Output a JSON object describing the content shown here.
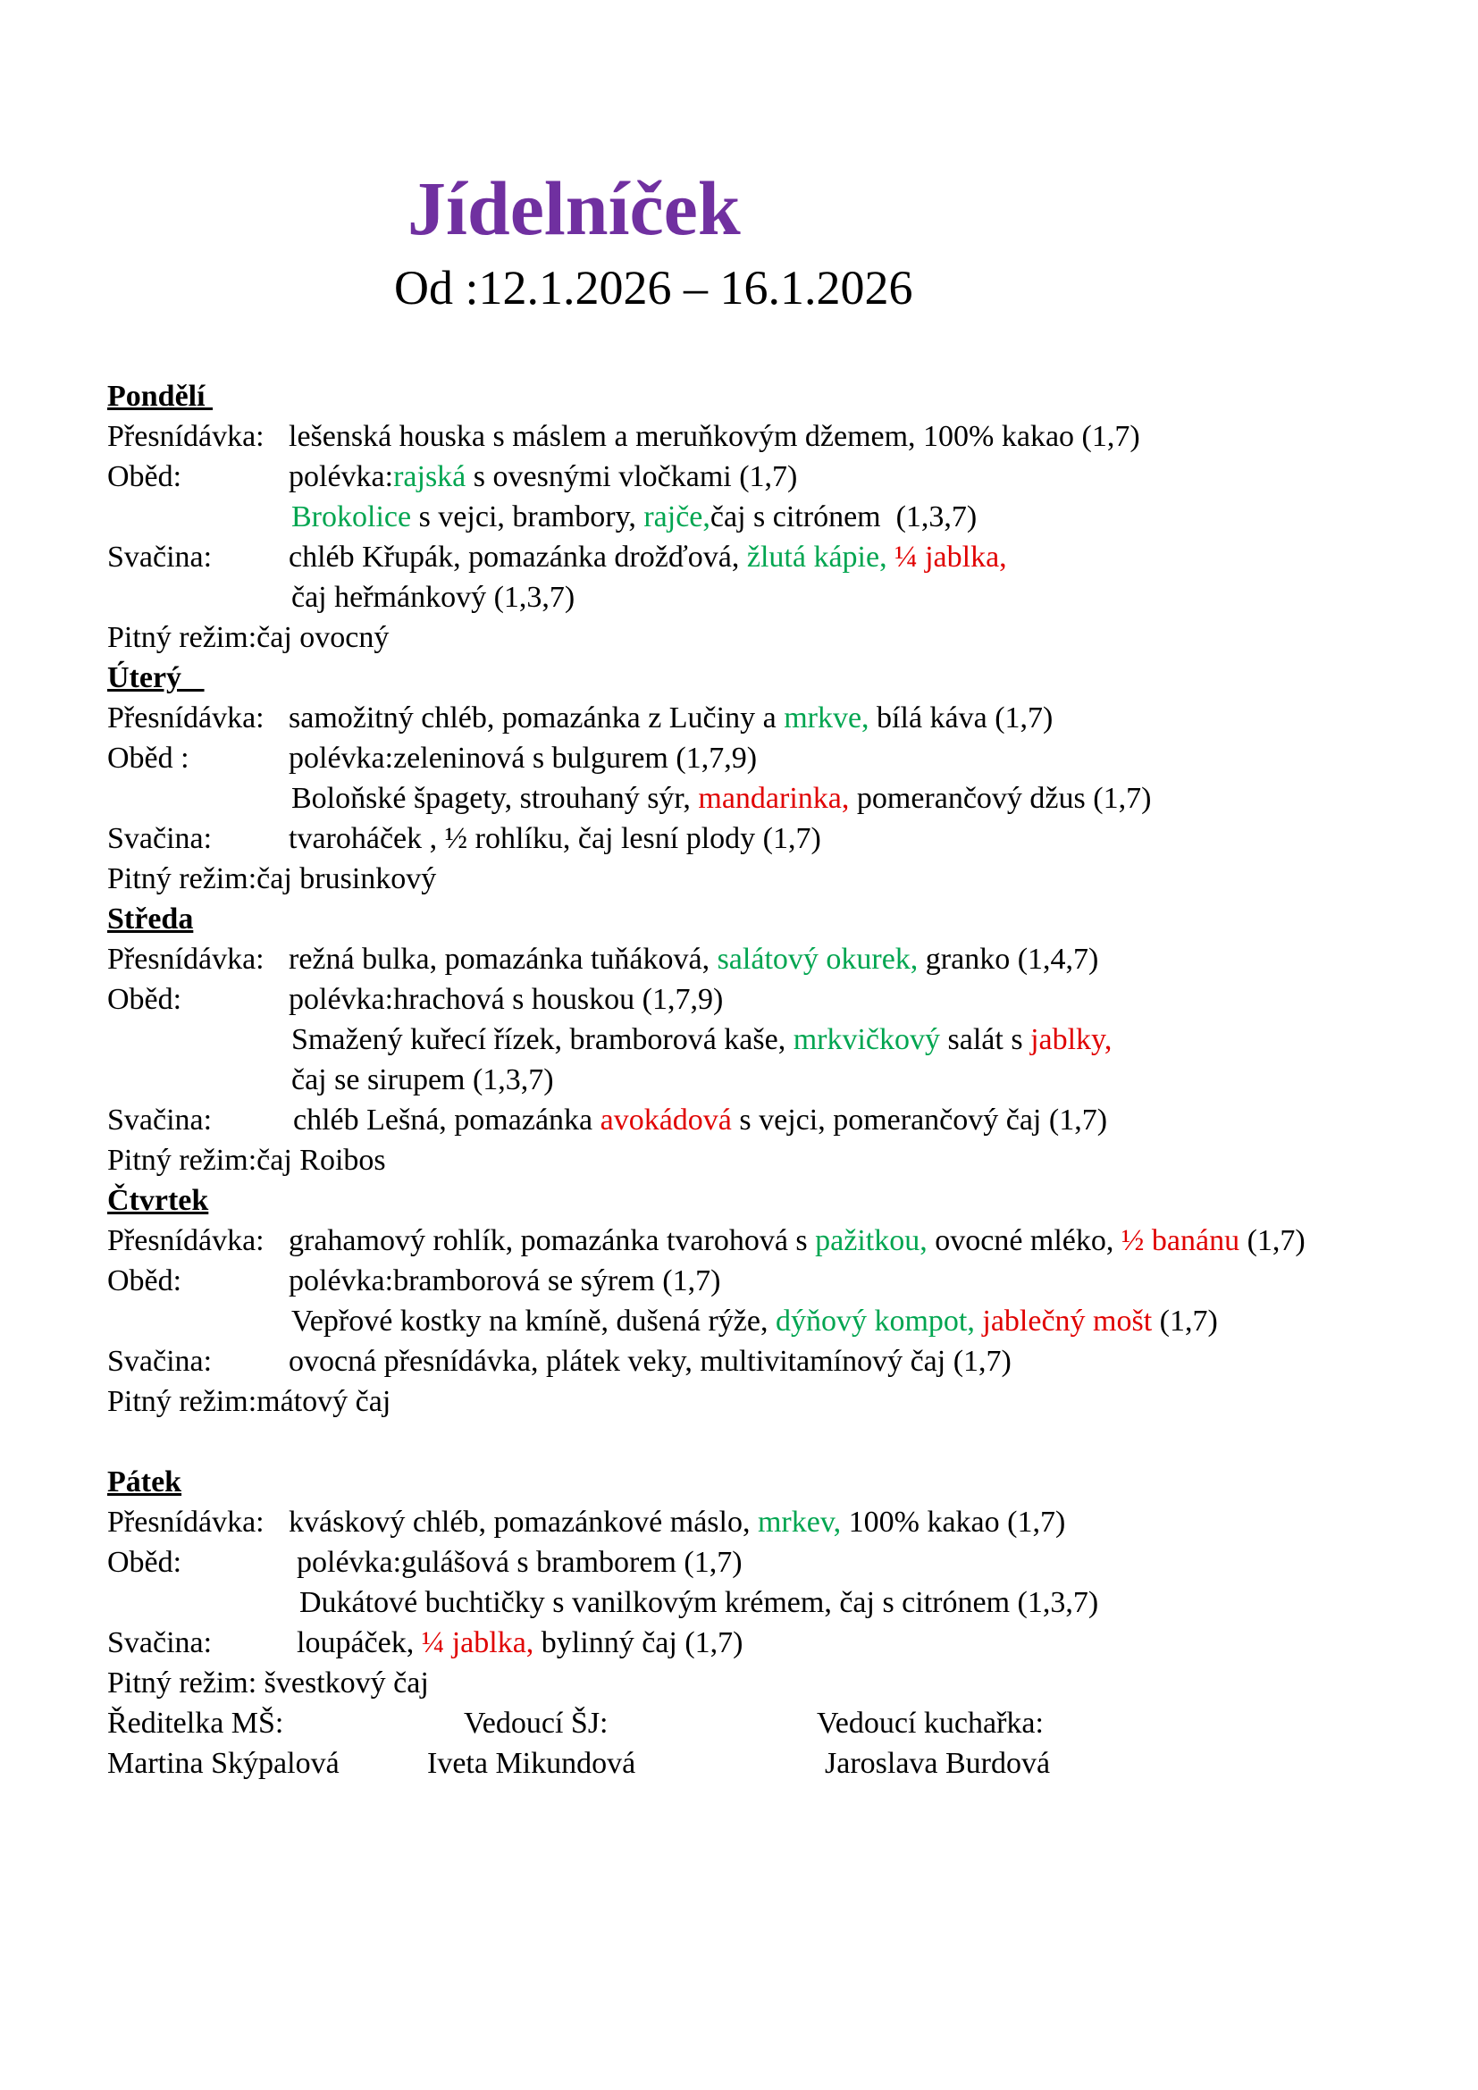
{
  "title": "Jídelníček",
  "date_range": "Od :12.1.2026 – 16.1.2026",
  "colors": {
    "title": "#7030A0",
    "green": "#00A550",
    "red": "#E00000",
    "text": "#000000"
  },
  "days": [
    {
      "name": "Pondělí ",
      "rows": [
        {
          "label": "Přesnídávka:",
          "segments": [
            {
              "t": "lešenská houska s máslem a meruňkovým džemem, 100% kakao (1,7)",
              "c": "text"
            }
          ]
        },
        {
          "label": "Oběd:",
          "segments": [
            {
              "t": "polévka:",
              "c": "text"
            },
            {
              "t": "rajská",
              "c": "green"
            },
            {
              "t": " s ovesnými vločkami (1,7)",
              "c": "text"
            }
          ]
        },
        {
          "label": "",
          "offset": 3,
          "segments": [
            {
              "t": "Brokolice",
              "c": "green"
            },
            {
              "t": " s vejci, brambory, ",
              "c": "text"
            },
            {
              "t": "rajče,",
              "c": "green"
            },
            {
              "t": "čaj s citrónem  (1,3,7)",
              "c": "text"
            }
          ]
        },
        {
          "label": "Svačina:",
          "segments": [
            {
              "t": "chléb Křupák, pomazánka drožďová, ",
              "c": "text"
            },
            {
              "t": "žlutá kápie, ",
              "c": "green"
            },
            {
              "t": "¼ jablka,",
              "c": "red"
            }
          ]
        },
        {
          "label": "",
          "offset": 3,
          "segments": [
            {
              "t": "čaj heřmánkový (1,3,7)",
              "c": "text"
            }
          ]
        },
        {
          "label": "Pitný režim: ",
          "segments": [
            {
              "t": "čaj ovocný",
              "c": "text"
            }
          ]
        }
      ]
    },
    {
      "name": "Úterý   ",
      "rows": [
        {
          "label": "Přesnídávka:",
          "segments": [
            {
              "t": "samožitný chléb, pomazánka z Lučiny a ",
              "c": "text"
            },
            {
              "t": "mrkve,",
              "c": "green"
            },
            {
              "t": " bílá káva (1,7)",
              "c": "text"
            }
          ]
        },
        {
          "label": "Oběd :",
          "segments": [
            {
              "t": "polévka:zeleninová s bulgurem (1,7,9)",
              "c": "text"
            }
          ]
        },
        {
          "label": "",
          "offset": 3,
          "segments": [
            {
              "t": "Boloňské špagety, strouhaný sýr, ",
              "c": "text"
            },
            {
              "t": "mandarinka,",
              "c": "red"
            },
            {
              "t": " pomerančový džus (1,7)",
              "c": "text"
            }
          ]
        },
        {
          "label": "Svačina:",
          "segments": [
            {
              "t": "tvaroháček , ½ rohlíku, čaj lesní plody (1,7)",
              "c": "text"
            }
          ]
        },
        {
          "label": "Pitný režim: ",
          "segments": [
            {
              "t": "čaj brusinkový",
              "c": "text"
            }
          ]
        }
      ]
    },
    {
      "name": "Středa",
      "rows": [
        {
          "label": "Přesnídávka:",
          "segments": [
            {
              "t": "režná bulka, pomazánka tuňáková, ",
              "c": "text"
            },
            {
              "t": "salátový okurek,",
              "c": "green"
            },
            {
              "t": " granko (1,4,7)",
              "c": "text"
            }
          ]
        },
        {
          "label": "Oběd:",
          "segments": [
            {
              "t": "polévka:hrachová s houskou (1,7,9)",
              "c": "text"
            }
          ]
        },
        {
          "label": "",
          "offset": 3,
          "segments": [
            {
              "t": "Smažený kuřecí řízek, bramborová kaše, ",
              "c": "text"
            },
            {
              "t": "mrkvičkový",
              "c": "green"
            },
            {
              "t": " salát s ",
              "c": "text"
            },
            {
              "t": "jablky,",
              "c": "red"
            }
          ]
        },
        {
          "label": "",
          "offset": 3,
          "segments": [
            {
              "t": "čaj se sirupem (1,3,7)",
              "c": "text"
            }
          ]
        },
        {
          "label": "Svačina:",
          "offset": 5,
          "segments": [
            {
              "t": "chléb Lešná, pomazánka ",
              "c": "text"
            },
            {
              "t": "avokádová",
              "c": "red"
            },
            {
              "t": " s vejci, pomerančový čaj (1,7)",
              "c": "text"
            }
          ]
        },
        {
          "label": "Pitný režim: ",
          "segments": [
            {
              "t": "čaj Roibos",
              "c": "text"
            }
          ]
        }
      ]
    },
    {
      "name": "Čtvrtek",
      "rows": [
        {
          "label": "Přesnídávka:",
          "segments": [
            {
              "t": "grahamový rohlík, pomazánka tvarohová s ",
              "c": "text"
            },
            {
              "t": "pažitkou,",
              "c": "green"
            },
            {
              "t": " ovocné mléko, ",
              "c": "text"
            },
            {
              "t": "½ banánu",
              "c": "red"
            },
            {
              "t": " (1,7)",
              "c": "text"
            }
          ]
        },
        {
          "label": "Oběd:",
          "segments": [
            {
              "t": "polévka:bramborová se sýrem (1,7)",
              "c": "text"
            }
          ]
        },
        {
          "label": "",
          "offset": 3,
          "segments": [
            {
              "t": "Vepřové kostky na kmíně, dušená rýže, ",
              "c": "text"
            },
            {
              "t": "dýňový kompot,",
              "c": "green"
            },
            {
              "t": " ",
              "c": "text"
            },
            {
              "t": "jablečný mošt",
              "c": "red"
            },
            {
              "t": " (1,7)",
              "c": "text"
            }
          ]
        },
        {
          "label": "Svačina:",
          "segments": [
            {
              "t": "ovocná přesnídávka, plátek veky, multivitamínový čaj (1,7)",
              "c": "text"
            }
          ]
        },
        {
          "label": "Pitný režim: ",
          "segments": [
            {
              "t": "mátový čaj",
              "c": "text"
            }
          ]
        },
        {
          "label": "",
          "segments": []
        }
      ]
    },
    {
      "name": "Pátek",
      "rows": [
        {
          "label": "Přesnídávka:",
          "segments": [
            {
              "t": "kváskový chléb, pomazánkové máslo, ",
              "c": "text"
            },
            {
              "t": "mrkev,",
              "c": "green"
            },
            {
              "t": " 100% kakao (1,7)",
              "c": "text"
            }
          ]
        },
        {
          "label": "Oběd:",
          "offset": 9,
          "segments": [
            {
              "t": "polévka:gulášová s bramborem (1,7)",
              "c": "text"
            }
          ]
        },
        {
          "label": "",
          "offset": 12,
          "segments": [
            {
              "t": "Dukátové buchtičky s vanilkovým krémem, čaj s citrónem (1,3,7)",
              "c": "text"
            }
          ]
        },
        {
          "label": "Svačina:",
          "offset": 9,
          "segments": [
            {
              "t": "loupáček, ",
              "c": "text"
            },
            {
              "t": "¼ jablka,",
              "c": "red"
            },
            {
              "t": " bylinný čaj (1,7)",
              "c": "text"
            }
          ]
        },
        {
          "label": "Pitný režim: ",
          "segments": [
            {
              "t": " švestkový čaj",
              "c": "text"
            }
          ]
        }
      ]
    }
  ],
  "signatures": [
    {
      "role": "Ředitelka MŠ:",
      "name": "Martina Skýpalová"
    },
    {
      "role": "Vedoucí ŠJ:",
      "name": "Iveta Mikundová"
    },
    {
      "role": "Vedoucí kuchařka:",
      "name": "Jaroslava Burdová"
    }
  ]
}
